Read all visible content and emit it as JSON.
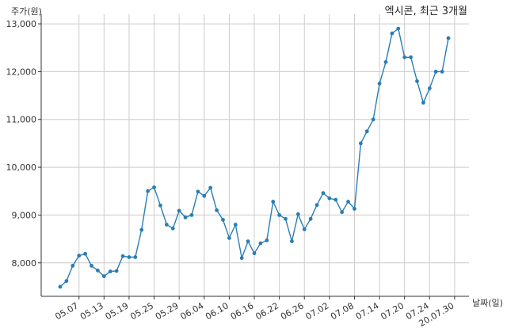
{
  "chart_data": {
    "type": "line",
    "title": "엑시콘, 최근 3개월",
    "xlabel": "날짜(일)",
    "ylabel": "주가(원)",
    "ylim": [
      7300,
      13200
    ],
    "yticks": [
      8000,
      9000,
      10000,
      11000,
      12000,
      13000
    ],
    "ytick_labels": [
      "8,000",
      "9,000",
      "10,000",
      "11,000",
      "12,000",
      "13,000"
    ],
    "xtick_labels": [
      "05.07",
      "05.13",
      "05.19",
      "05.25",
      "05.29",
      "06.04",
      "06.10",
      "06.16",
      "06.22",
      "06.26",
      "07.02",
      "07.08",
      "07.14",
      "07.20",
      "07.24",
      "20.07.30"
    ],
    "xtick_index": [
      3,
      7,
      11,
      15,
      19,
      23,
      27,
      31,
      35,
      39,
      43,
      47,
      51,
      55,
      59,
      63
    ],
    "grid": true,
    "color": "#2a7db4",
    "series": [
      {
        "values": [
          7500,
          7620,
          7940,
          8150,
          8190,
          7940,
          7840,
          7720,
          7820,
          7830,
          8140,
          8120,
          8120,
          8690,
          9500,
          9580,
          9200,
          8800,
          8720,
          9090,
          8950,
          9000,
          9490,
          9400,
          9570,
          9100,
          8900,
          8520,
          8800,
          8100,
          8450,
          8200,
          8410,
          8470,
          9280,
          9000,
          8920,
          8450,
          9020,
          8700,
          8920,
          9210,
          9460,
          9350,
          9320,
          9060,
          9280,
          9130,
          10500,
          10750,
          11000,
          11750,
          12200,
          12800,
          12900,
          12300,
          12300,
          11800,
          11350,
          11650,
          12000,
          12000,
          12700
        ]
      }
    ]
  }
}
